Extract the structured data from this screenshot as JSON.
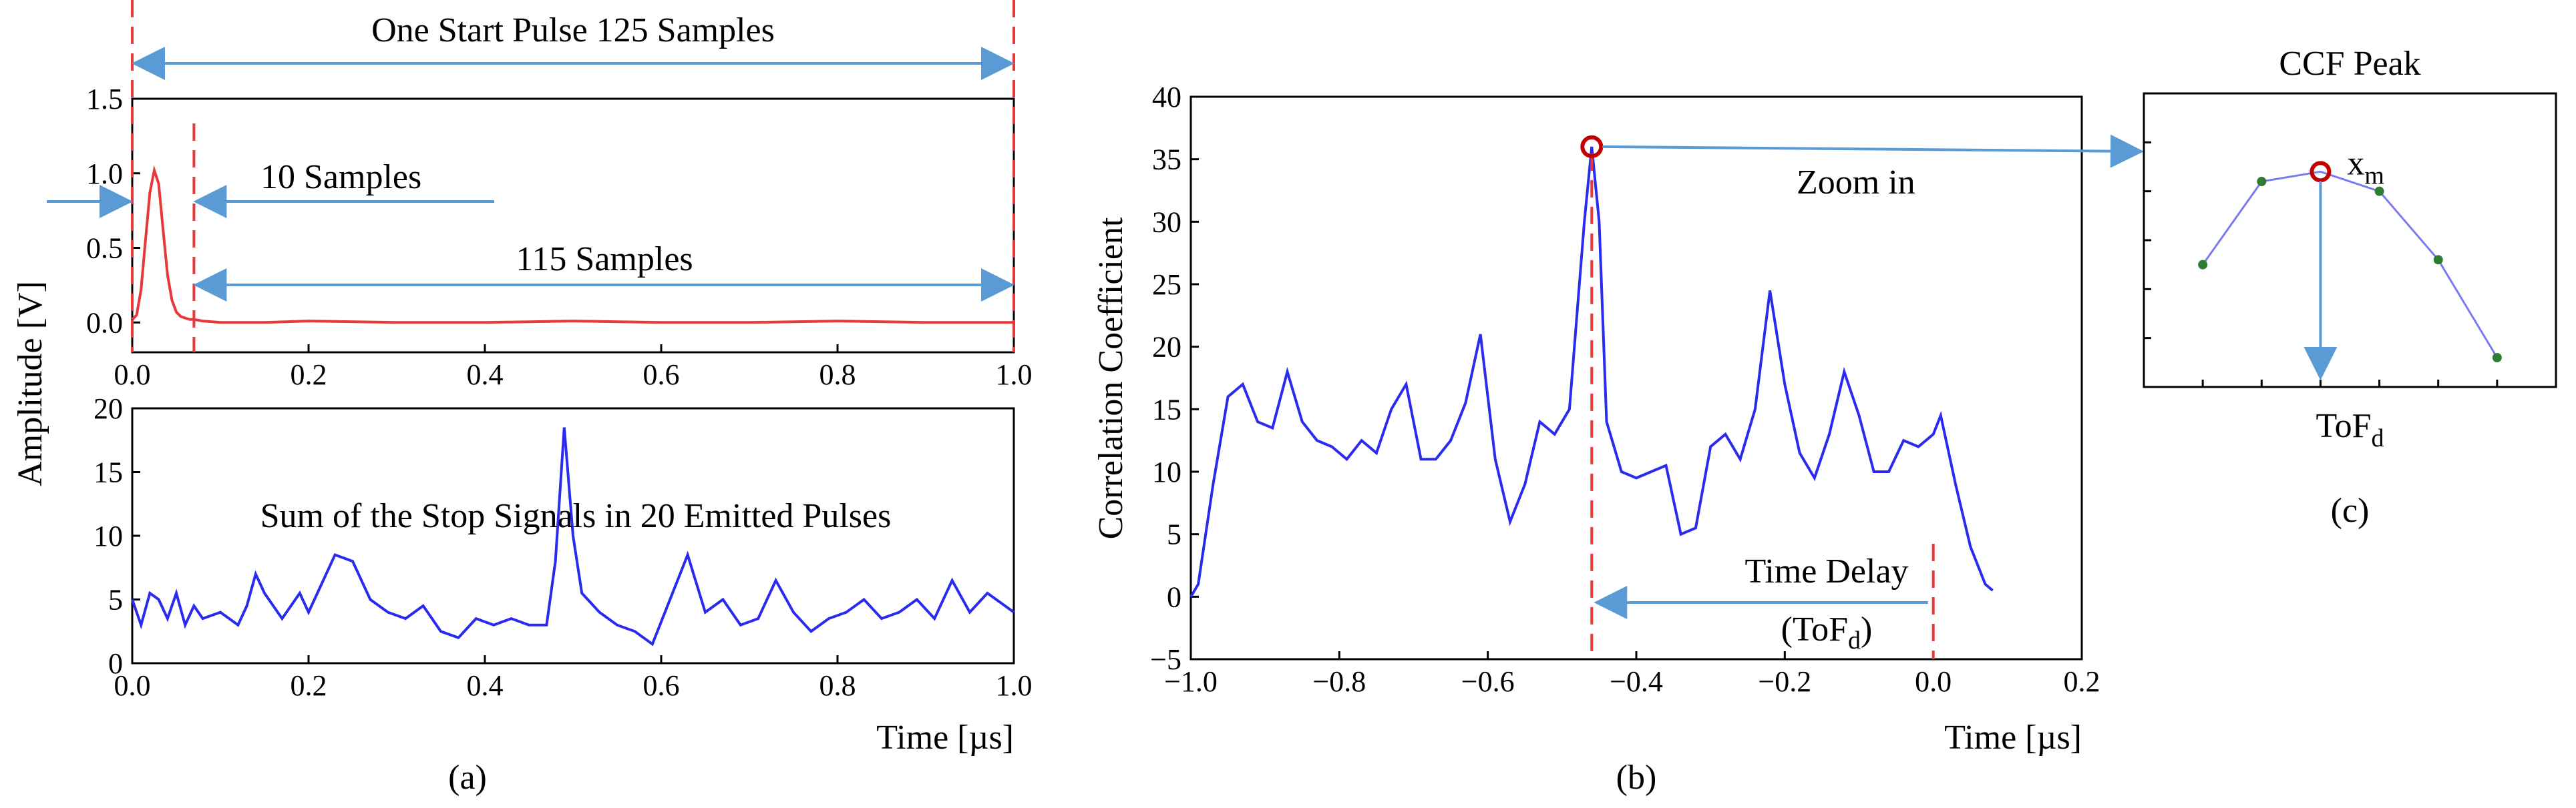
{
  "colors": {
    "red": "#e8383a",
    "blue": "#2b2bef",
    "arrow": "#5b9bd5",
    "peak": "#c00000",
    "dot": "#2e7d32",
    "zoomline": "#7b7bf0"
  },
  "captions": {
    "a": "(a)",
    "b": "(b)",
    "c": "(c)"
  },
  "chart_data": [
    {
      "id": "a_top",
      "type": "line",
      "title": "",
      "xlabel": "",
      "ylabel": "Amplitude [V]",
      "xlim": [
        0.0,
        1.0
      ],
      "ylim": [
        -0.2,
        1.5
      ],
      "xticks": [
        "0.0",
        "0.2",
        "0.4",
        "0.6",
        "0.8",
        "1.0"
      ],
      "yticks": [
        "0.0",
        "0.5",
        "1.0",
        "1.5"
      ],
      "series": [
        {
          "name": "start pulse",
          "x": [
            0.0,
            0.005,
            0.01,
            0.015,
            0.02,
            0.025,
            0.03,
            0.035,
            0.04,
            0.045,
            0.05,
            0.055,
            0.06,
            0.065,
            0.07,
            0.08,
            0.1,
            0.15,
            0.2,
            0.3,
            0.4,
            0.5,
            0.6,
            0.7,
            0.8,
            0.9,
            1.0
          ],
          "y": [
            0.02,
            0.05,
            0.22,
            0.55,
            0.87,
            1.02,
            0.93,
            0.62,
            0.32,
            0.15,
            0.07,
            0.04,
            0.03,
            0.02,
            0.02,
            0.01,
            0.0,
            0.0,
            0.01,
            0.0,
            0.0,
            0.01,
            0.0,
            0.0,
            0.01,
            0.0,
            0.0
          ]
        }
      ],
      "annotations": {
        "span_total": "One Start Pulse 125 Samples",
        "span_pulse": "10 Samples",
        "span_rest": "115 Samples"
      },
      "markers_x": [
        0.0,
        0.07,
        1.0
      ]
    },
    {
      "id": "a_bottom",
      "type": "line",
      "title": "Sum of the Stop Signals in 20 Emitted Pulses",
      "xlabel": "Time [µs]",
      "ylabel": "",
      "xlim": [
        0.0,
        1.0
      ],
      "ylim": [
        0,
        20
      ],
      "xticks": [
        "0.0",
        "0.2",
        "0.4",
        "0.6",
        "0.8",
        "1.0"
      ],
      "yticks": [
        "0",
        "5",
        "10",
        "15",
        "20"
      ],
      "series": [
        {
          "name": "stop signal sum",
          "x": [
            0.0,
            0.01,
            0.02,
            0.03,
            0.04,
            0.05,
            0.06,
            0.07,
            0.08,
            0.1,
            0.12,
            0.13,
            0.14,
            0.15,
            0.17,
            0.19,
            0.2,
            0.21,
            0.23,
            0.25,
            0.27,
            0.29,
            0.31,
            0.33,
            0.35,
            0.37,
            0.39,
            0.41,
            0.43,
            0.45,
            0.47,
            0.48,
            0.49,
            0.5,
            0.51,
            0.53,
            0.55,
            0.57,
            0.59,
            0.61,
            0.63,
            0.65,
            0.67,
            0.69,
            0.71,
            0.73,
            0.75,
            0.77,
            0.79,
            0.81,
            0.83,
            0.85,
            0.87,
            0.89,
            0.91,
            0.93,
            0.95,
            0.97,
            0.99,
            1.0
          ],
          "y": [
            5,
            3,
            5.5,
            5,
            3.5,
            5.5,
            3,
            4.5,
            3.5,
            4,
            3,
            4.5,
            7,
            5.5,
            3.5,
            5.5,
            4,
            5.5,
            8.5,
            8,
            5,
            4,
            3.5,
            4.5,
            2.5,
            2,
            3.5,
            3,
            3.5,
            3,
            3,
            8,
            18.5,
            10,
            5.5,
            4,
            3,
            2.5,
            1.5,
            5,
            8.5,
            4,
            5,
            3,
            3.5,
            6.5,
            4,
            2.5,
            3.5,
            4,
            5,
            3.5,
            4,
            5,
            3.5,
            6.5,
            4,
            5.5,
            4.5,
            4
          ]
        }
      ]
    },
    {
      "id": "b",
      "type": "line",
      "title": "",
      "xlabel": "Time [µs]",
      "ylabel": "Correlation Coefficient",
      "xlim": [
        -1.0,
        0.2
      ],
      "ylim": [
        -5,
        40
      ],
      "xticks": [
        "−1.0",
        "−0.8",
        "−0.6",
        "−0.4",
        "−0.2",
        "0.0",
        "0.2"
      ],
      "yticks": [
        "−5",
        "0",
        "5",
        "10",
        "15",
        "20",
        "25",
        "30",
        "35",
        "40"
      ],
      "series": [
        {
          "name": "CCF",
          "x": [
            -1.0,
            -0.99,
            -0.97,
            -0.95,
            -0.93,
            -0.91,
            -0.89,
            -0.87,
            -0.85,
            -0.83,
            -0.81,
            -0.79,
            -0.77,
            -0.75,
            -0.73,
            -0.71,
            -0.69,
            -0.67,
            -0.65,
            -0.63,
            -0.61,
            -0.59,
            -0.57,
            -0.55,
            -0.53,
            -0.51,
            -0.49,
            -0.47,
            -0.46,
            -0.45,
            -0.44,
            -0.42,
            -0.4,
            -0.38,
            -0.36,
            -0.34,
            -0.32,
            -0.3,
            -0.28,
            -0.26,
            -0.24,
            -0.22,
            -0.2,
            -0.18,
            -0.16,
            -0.14,
            -0.12,
            -0.1,
            -0.08,
            -0.06,
            -0.04,
            -0.02,
            0.0,
            0.01,
            0.03,
            0.05,
            0.07,
            0.08
          ],
          "y": [
            0,
            1,
            9,
            16,
            17,
            14,
            13.5,
            18,
            14,
            12.5,
            12,
            11,
            12.5,
            11.5,
            15,
            17,
            11,
            11,
            12.5,
            15.5,
            21,
            11,
            6,
            9,
            14,
            13,
            15,
            30,
            36,
            30,
            14,
            10,
            9.5,
            10,
            10.5,
            5,
            5.5,
            12,
            13,
            11,
            15,
            24.5,
            17,
            11.5,
            9.5,
            13,
            18,
            14.5,
            10,
            10,
            12.5,
            12,
            13,
            14.5,
            9,
            4,
            1,
            0.5
          ]
        }
      ],
      "peak": {
        "x": -0.46,
        "y": 36
      },
      "markers_x": [
        -0.46,
        0.0
      ],
      "annotations": {
        "zoom": "Zoom in",
        "delay": "Time Delay",
        "delay_sym_pre": "(ToF",
        "delay_sym_sub": "d",
        "delay_sym_post": ")"
      }
    },
    {
      "id": "c",
      "type": "line",
      "title": "CCF Peak",
      "xlabel": "",
      "ylabel": "",
      "xlim": [
        0,
        7
      ],
      "ylim": [
        0,
        6
      ],
      "series": [
        {
          "name": "zoomed peak",
          "x": [
            1,
            2,
            3,
            4,
            5,
            6
          ],
          "y": [
            2.5,
            4.2,
            4.4,
            4.0,
            2.6,
            0.6
          ]
        }
      ],
      "peak_index": 2,
      "annotations": {
        "xm": "x",
        "xm_sub": "m",
        "tof": "ToF",
        "tof_sub": "d"
      }
    }
  ]
}
